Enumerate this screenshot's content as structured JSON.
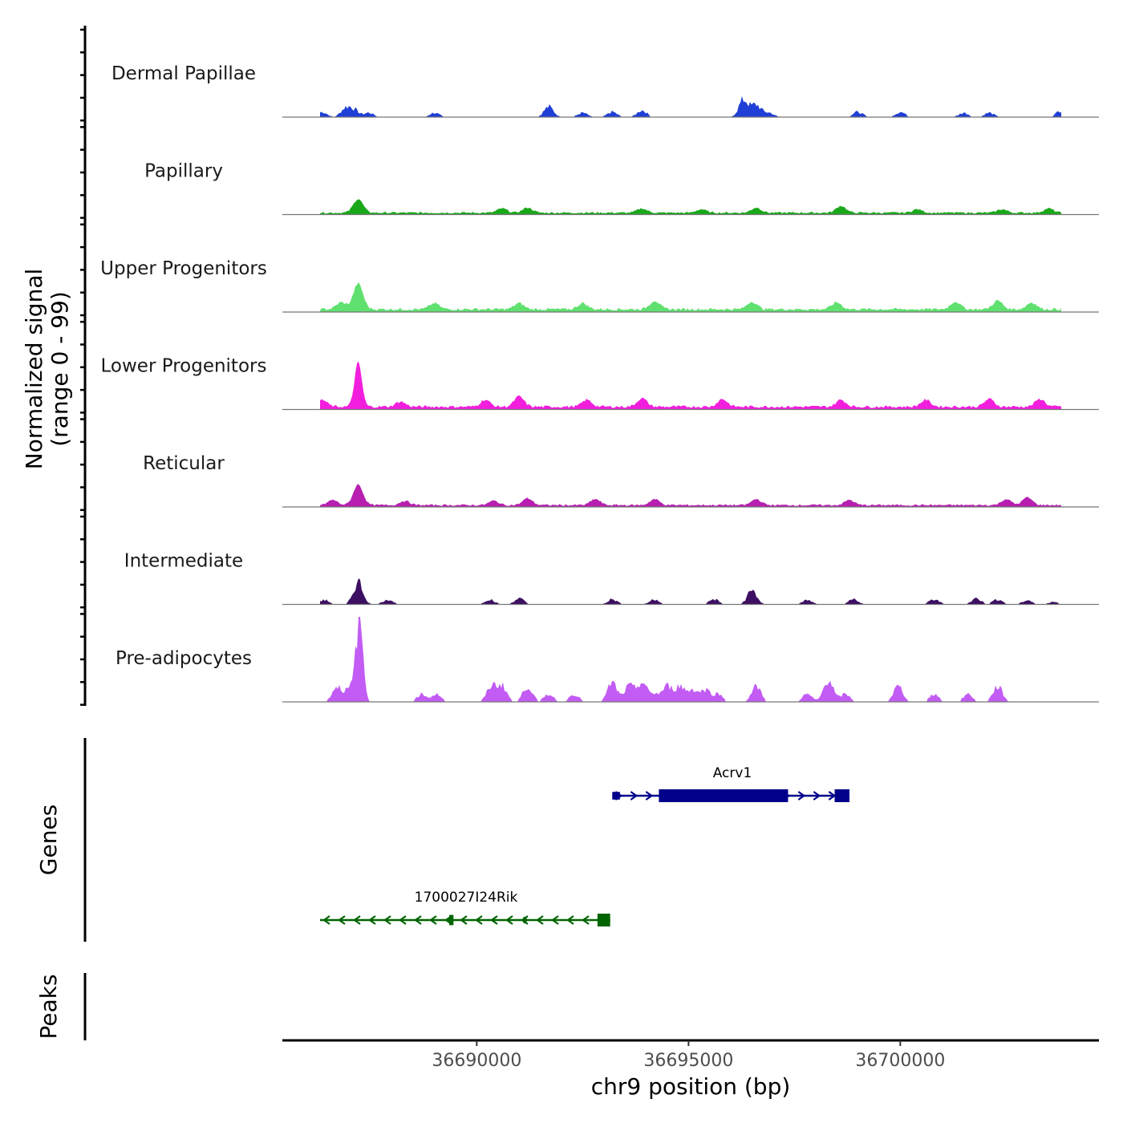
{
  "chart_data": {
    "type": "area",
    "title": "",
    "coverage_ylabel_line1": "Normalized signal",
    "coverage_ylabel_line2": "(range 0 - 99)",
    "xlabel": "chr9 position (bp)",
    "xlim": [
      36685400,
      36704700
    ],
    "xticks": [
      {
        "value": 36690000,
        "label": "36690000"
      },
      {
        "value": 36695000,
        "label": "36695000"
      },
      {
        "value": 36700000,
        "label": "36700000"
      }
    ],
    "signal_range": [
      0,
      99
    ],
    "tracks": [
      {
        "name": "Dermal Papillae",
        "color": "#1f3fd6",
        "baseline": 1,
        "sparse": true,
        "peaks": [
          [
            36686350,
            6
          ],
          [
            36686900,
            10
          ],
          [
            36687100,
            8
          ],
          [
            36687450,
            5
          ],
          [
            36689000,
            5
          ],
          [
            36691700,
            12
          ],
          [
            36692500,
            5
          ],
          [
            36693200,
            6
          ],
          [
            36693900,
            8
          ],
          [
            36696300,
            20
          ],
          [
            36696600,
            14
          ],
          [
            36696900,
            5
          ],
          [
            36699000,
            6
          ],
          [
            36700000,
            6
          ],
          [
            36701500,
            5
          ],
          [
            36702100,
            5
          ],
          [
            36703800,
            8
          ]
        ]
      },
      {
        "name": "Papillary",
        "color": "#1aa81a",
        "baseline": 2,
        "peaks": [
          [
            36687200,
            16
          ],
          [
            36690600,
            5
          ],
          [
            36691200,
            6
          ],
          [
            36693900,
            5
          ],
          [
            36695300,
            4
          ],
          [
            36696600,
            6
          ],
          [
            36698600,
            8
          ],
          [
            36700400,
            4
          ],
          [
            36702400,
            4
          ],
          [
            36703500,
            5
          ]
        ]
      },
      {
        "name": "Upper Progenitors",
        "color": "#5fe06f",
        "baseline": 3,
        "peaks": [
          [
            36686800,
            8
          ],
          [
            36687200,
            30
          ],
          [
            36689000,
            7
          ],
          [
            36691000,
            7
          ],
          [
            36692500,
            7
          ],
          [
            36694200,
            10
          ],
          [
            36696500,
            9
          ],
          [
            36698500,
            8
          ],
          [
            36701300,
            9
          ],
          [
            36702300,
            10
          ],
          [
            36703100,
            8
          ]
        ]
      },
      {
        "name": "Lower Progenitors",
        "color": "#f21edd",
        "baseline": 3,
        "peaks": [
          [
            36686350,
            8
          ],
          [
            36687200,
            52
          ],
          [
            36688200,
            6
          ],
          [
            36690200,
            8
          ],
          [
            36691000,
            12
          ],
          [
            36692600,
            8
          ],
          [
            36693900,
            10
          ],
          [
            36695800,
            9
          ],
          [
            36698600,
            8
          ],
          [
            36700600,
            8
          ],
          [
            36702100,
            9
          ],
          [
            36703300,
            9
          ]
        ]
      },
      {
        "name": "Reticular",
        "color": "#b71fb0",
        "baseline": 2,
        "peaks": [
          [
            36686600,
            6
          ],
          [
            36687200,
            24
          ],
          [
            36688300,
            5
          ],
          [
            36690400,
            5
          ],
          [
            36691200,
            8
          ],
          [
            36692800,
            7
          ],
          [
            36694200,
            7
          ],
          [
            36696600,
            7
          ],
          [
            36698800,
            6
          ],
          [
            36702500,
            7
          ],
          [
            36703000,
            9
          ]
        ]
      },
      {
        "name": "Intermediate",
        "color": "#3d0f62",
        "baseline": 1,
        "sparse": true,
        "peaks": [
          [
            36686400,
            5
          ],
          [
            36687200,
            26
          ],
          [
            36687900,
            6
          ],
          [
            36690300,
            6
          ],
          [
            36691000,
            7
          ],
          [
            36693200,
            6
          ],
          [
            36694200,
            6
          ],
          [
            36695600,
            6
          ],
          [
            36696500,
            16
          ],
          [
            36697800,
            5
          ],
          [
            36698900,
            6
          ],
          [
            36700800,
            6
          ],
          [
            36701800,
            7
          ],
          [
            36702300,
            6
          ],
          [
            36703000,
            5
          ],
          [
            36703600,
            3
          ]
        ]
      },
      {
        "name": "Pre-adipocytes",
        "color": "#c25cf4",
        "baseline": 0,
        "sparse": true,
        "peaks": [
          [
            36685900,
            9
          ],
          [
            36686700,
            18
          ],
          [
            36687000,
            14
          ],
          [
            36687230,
            96
          ],
          [
            36688700,
            9
          ],
          [
            36689050,
            9
          ],
          [
            36690350,
            18
          ],
          [
            36690600,
            18
          ],
          [
            36691200,
            18
          ],
          [
            36691700,
            9
          ],
          [
            36692300,
            9
          ],
          [
            36693200,
            22
          ],
          [
            36693600,
            18
          ],
          [
            36693900,
            22
          ],
          [
            36694200,
            9
          ],
          [
            36694500,
            18
          ],
          [
            36694800,
            18
          ],
          [
            36695100,
            14
          ],
          [
            36695400,
            14
          ],
          [
            36695700,
            9
          ],
          [
            36696600,
            18
          ],
          [
            36697800,
            9
          ],
          [
            36698300,
            26
          ],
          [
            36698700,
            9
          ],
          [
            36699950,
            18
          ],
          [
            36700800,
            9
          ],
          [
            36701600,
            9
          ],
          [
            36702300,
            18
          ]
        ]
      }
    ],
    "genes_label": "Genes",
    "genes": [
      {
        "name": "Acrv1",
        "strand": "+",
        "color": "#00008b",
        "start": 36693200,
        "end": 36698800,
        "exons": [
          [
            36693200,
            36693380,
            0.6
          ],
          [
            36694300,
            36697350,
            1.0
          ],
          [
            36698450,
            36698800,
            1.0
          ]
        ]
      },
      {
        "name": "1700027I24Rik",
        "strand": "-",
        "color": "#006400",
        "start": 36686300,
        "end": 36693150,
        "exons": [
          [
            36689350,
            36689450,
            0.8
          ],
          [
            36691100,
            36691150,
            0.5
          ],
          [
            36692850,
            36693150,
            1.0
          ]
        ]
      }
    ],
    "peaks_label": "Peaks"
  }
}
